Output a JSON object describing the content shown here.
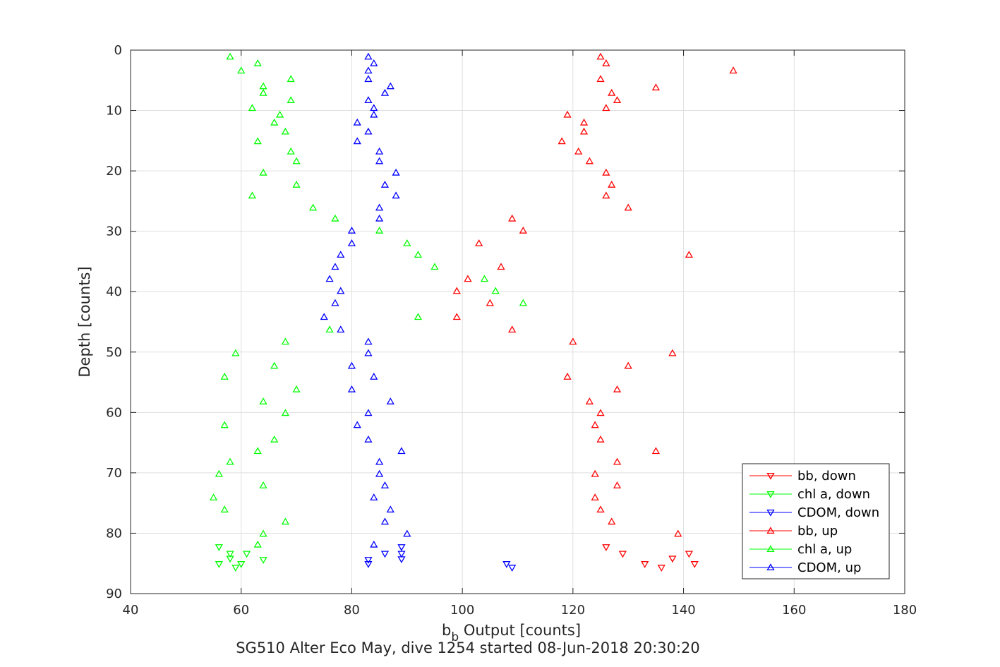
{
  "chart_data": {
    "type": "scatter",
    "title": "SG510 Alter Eco May, dive 1254 started 08-Jun-2018 20:30:20",
    "xlabel": "b",
    "xlabel_subscript": "b",
    "xlabel_rest": " Output [counts]",
    "ylabel": "Depth [counts]",
    "xlim": [
      40,
      180
    ],
    "ylim": [
      0,
      90
    ],
    "y_reversed": true,
    "grid": true,
    "legend_location": "bottom-right",
    "x_ticks": [
      40,
      60,
      80,
      100,
      120,
      140,
      160,
      180
    ],
    "y_ticks": [
      0,
      10,
      20,
      30,
      40,
      50,
      60,
      70,
      80,
      90
    ],
    "series": [
      {
        "name": "bb, down",
        "color": "#ff0000",
        "marker": "down",
        "points": [
          [
            126,
            82.3
          ],
          [
            129,
            83.4
          ],
          [
            141,
            83.4
          ],
          [
            138,
            84.2
          ],
          [
            142,
            85.1
          ],
          [
            133,
            85.1
          ],
          [
            136,
            85.7
          ]
        ]
      },
      {
        "name": "chl a, down",
        "color": "#00ff00",
        "marker": "down",
        "points": [
          [
            56,
            82.3
          ],
          [
            58,
            83.4
          ],
          [
            61,
            83.4
          ],
          [
            58,
            84.2
          ],
          [
            64,
            84.4
          ],
          [
            56,
            85.1
          ],
          [
            60,
            85.1
          ],
          [
            59,
            85.7
          ]
        ]
      },
      {
        "name": "CDOM, down",
        "color": "#0000ff",
        "marker": "down",
        "points": [
          [
            89,
            82.3
          ],
          [
            86,
            83.4
          ],
          [
            89,
            83.4
          ],
          [
            89,
            84.3
          ],
          [
            83,
            84.4
          ],
          [
            83,
            85.1
          ],
          [
            108,
            85.1
          ],
          [
            109,
            85.7
          ]
        ]
      },
      {
        "name": "bb, up",
        "color": "#ff0000",
        "marker": "up",
        "points": [
          [
            125,
            1.1
          ],
          [
            149,
            3.4
          ],
          [
            126,
            2.2
          ],
          [
            125,
            4.8
          ],
          [
            135,
            6.2
          ],
          [
            127,
            7.1
          ],
          [
            128,
            8.3
          ],
          [
            126,
            9.6
          ],
          [
            119,
            10.7
          ],
          [
            122,
            12.0
          ],
          [
            122,
            13.5
          ],
          [
            118,
            15.1
          ],
          [
            121,
            16.8
          ],
          [
            123,
            18.4
          ],
          [
            126,
            20.3
          ],
          [
            127,
            22.3
          ],
          [
            126,
            24.1
          ],
          [
            130,
            26.1
          ],
          [
            109,
            27.9
          ],
          [
            111,
            29.9
          ],
          [
            103,
            32.0
          ],
          [
            141,
            33.9
          ],
          [
            107,
            35.9
          ],
          [
            101,
            37.9
          ],
          [
            99,
            39.9
          ],
          [
            105,
            41.9
          ],
          [
            99,
            44.2
          ],
          [
            109,
            46.3
          ],
          [
            120,
            48.3
          ],
          [
            138,
            50.2
          ],
          [
            130,
            52.3
          ],
          [
            119,
            54.1
          ],
          [
            128,
            56.2
          ],
          [
            123,
            58.2
          ],
          [
            125,
            60.1
          ],
          [
            124,
            62.1
          ],
          [
            125,
            64.5
          ],
          [
            135,
            66.4
          ],
          [
            128,
            68.2
          ],
          [
            124,
            70.2
          ],
          [
            128,
            72.1
          ],
          [
            124,
            74.1
          ],
          [
            125,
            76.1
          ],
          [
            127,
            78.1
          ],
          [
            139,
            80.1
          ]
        ]
      },
      {
        "name": "chl a, up",
        "color": "#00ff00",
        "marker": "up",
        "points": [
          [
            58,
            1.1
          ],
          [
            63,
            2.2
          ],
          [
            60,
            3.4
          ],
          [
            69,
            4.8
          ],
          [
            64,
            6.0
          ],
          [
            64,
            7.1
          ],
          [
            69,
            8.3
          ],
          [
            62,
            9.6
          ],
          [
            67,
            10.7
          ],
          [
            66,
            12.0
          ],
          [
            68,
            13.5
          ],
          [
            63,
            15.1
          ],
          [
            69,
            16.8
          ],
          [
            70,
            18.4
          ],
          [
            64,
            20.3
          ],
          [
            70,
            22.3
          ],
          [
            62,
            24.1
          ],
          [
            73,
            26.1
          ],
          [
            77,
            27.9
          ],
          [
            85,
            29.9
          ],
          [
            90,
            32.0
          ],
          [
            92,
            33.9
          ],
          [
            95,
            35.9
          ],
          [
            104,
            37.9
          ],
          [
            106,
            39.9
          ],
          [
            111,
            41.9
          ],
          [
            92,
            44.2
          ],
          [
            76,
            46.3
          ],
          [
            68,
            48.3
          ],
          [
            59,
            50.2
          ],
          [
            66,
            52.3
          ],
          [
            57,
            54.1
          ],
          [
            70,
            56.2
          ],
          [
            64,
            58.2
          ],
          [
            68,
            60.1
          ],
          [
            57,
            62.1
          ],
          [
            66,
            64.5
          ],
          [
            63,
            66.4
          ],
          [
            58,
            68.2
          ],
          [
            56,
            70.2
          ],
          [
            64,
            72.1
          ],
          [
            55,
            74.1
          ],
          [
            57,
            76.1
          ],
          [
            68,
            78.1
          ],
          [
            64,
            80.1
          ],
          [
            63,
            81.9
          ]
        ]
      },
      {
        "name": "CDOM, up",
        "color": "#0000ff",
        "marker": "up",
        "points": [
          [
            83,
            1.1
          ],
          [
            84,
            2.2
          ],
          [
            83,
            3.4
          ],
          [
            83,
            4.8
          ],
          [
            87,
            6.0
          ],
          [
            86,
            7.1
          ],
          [
            83,
            8.3
          ],
          [
            84,
            9.6
          ],
          [
            84,
            10.7
          ],
          [
            81,
            12.0
          ],
          [
            83,
            13.5
          ],
          [
            81,
            15.1
          ],
          [
            85,
            16.8
          ],
          [
            85,
            18.4
          ],
          [
            88,
            20.3
          ],
          [
            86,
            22.3
          ],
          [
            88,
            24.1
          ],
          [
            85,
            26.1
          ],
          [
            85,
            27.9
          ],
          [
            80,
            29.9
          ],
          [
            80,
            32.0
          ],
          [
            78,
            33.9
          ],
          [
            77,
            35.9
          ],
          [
            76,
            37.9
          ],
          [
            78,
            39.9
          ],
          [
            77,
            41.9
          ],
          [
            75,
            44.2
          ],
          [
            78,
            46.3
          ],
          [
            83,
            48.3
          ],
          [
            83,
            50.2
          ],
          [
            80,
            52.3
          ],
          [
            84,
            54.1
          ],
          [
            80,
            56.2
          ],
          [
            87,
            58.2
          ],
          [
            83,
            60.1
          ],
          [
            81,
            62.1
          ],
          [
            83,
            64.5
          ],
          [
            89,
            66.4
          ],
          [
            85,
            68.2
          ],
          [
            85,
            70.2
          ],
          [
            86,
            72.1
          ],
          [
            84,
            74.1
          ],
          [
            87,
            76.1
          ],
          [
            86,
            78.1
          ],
          [
            90,
            80.1
          ],
          [
            84,
            81.9
          ]
        ]
      }
    ]
  }
}
